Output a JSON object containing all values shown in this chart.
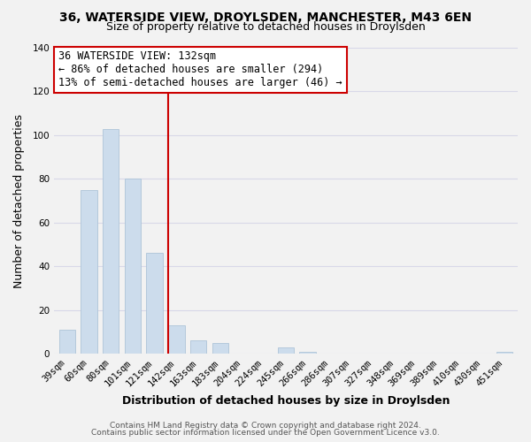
{
  "title": "36, WATERSIDE VIEW, DROYLSDEN, MANCHESTER, M43 6EN",
  "subtitle": "Size of property relative to detached houses in Droylsden",
  "xlabel": "Distribution of detached houses by size in Droylsden",
  "ylabel": "Number of detached properties",
  "bar_labels": [
    "39sqm",
    "60sqm",
    "80sqm",
    "101sqm",
    "121sqm",
    "142sqm",
    "163sqm",
    "183sqm",
    "204sqm",
    "224sqm",
    "245sqm",
    "266sqm",
    "286sqm",
    "307sqm",
    "327sqm",
    "348sqm",
    "369sqm",
    "389sqm",
    "410sqm",
    "430sqm",
    "451sqm"
  ],
  "bar_values": [
    11,
    75,
    103,
    80,
    46,
    13,
    6,
    5,
    0,
    0,
    3,
    1,
    0,
    0,
    0,
    0,
    0,
    0,
    0,
    0,
    1
  ],
  "bar_color": "#ccdcec",
  "bar_edge_color": "#aec4d8",
  "highlight_line_color": "#cc0000",
  "annotation_text_line1": "36 WATERSIDE VIEW: 132sqm",
  "annotation_text_line2": "← 86% of detached houses are smaller (294)",
  "annotation_text_line3": "13% of semi-detached houses are larger (46) →",
  "annotation_box_color": "#ffffff",
  "annotation_box_edge_color": "#cc0000",
  "ylim": [
    0,
    140
  ],
  "yticks": [
    0,
    20,
    40,
    60,
    80,
    100,
    120,
    140
  ],
  "footer_line1": "Contains HM Land Registry data © Crown copyright and database right 2024.",
  "footer_line2": "Contains public sector information licensed under the Open Government Licence v3.0.",
  "background_color": "#f2f2f2",
  "plot_bg_color": "#f2f2f2",
  "grid_color": "#d8d8e8",
  "title_fontsize": 10,
  "subtitle_fontsize": 9,
  "axis_label_fontsize": 9,
  "tick_fontsize": 7.5,
  "annotation_fontsize": 8.5,
  "footer_fontsize": 6.5,
  "highlight_bar_index": 5
}
